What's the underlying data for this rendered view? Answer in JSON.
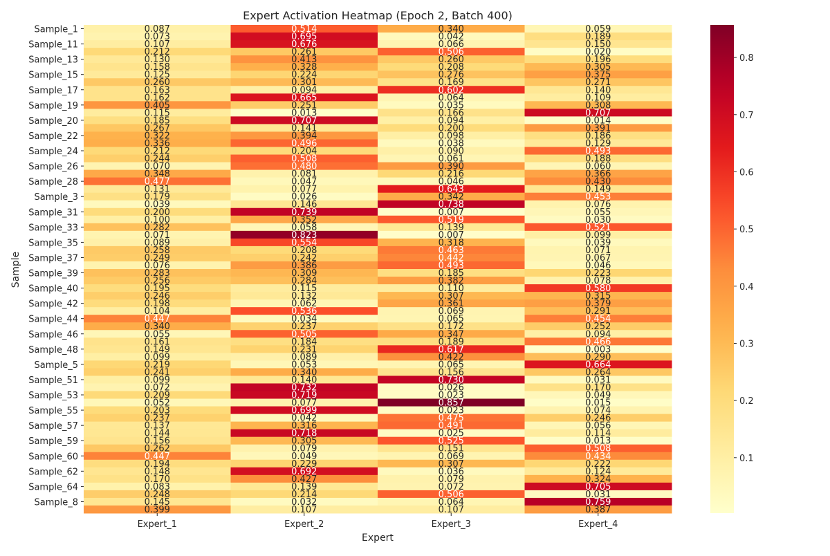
{
  "chart_data": {
    "type": "heatmap",
    "title": "Expert Activation Heatmap (Epoch 2, Batch 400)",
    "xlabel": "Expert",
    "ylabel": "Sample",
    "columns": [
      "Expert_1",
      "Expert_2",
      "Expert_3",
      "Expert_4"
    ],
    "row_tick_labels": [
      "Sample_1",
      "Sample_11",
      "Sample_13",
      "Sample_15",
      "Sample_17",
      "Sample_19",
      "Sample_20",
      "Sample_22",
      "Sample_24",
      "Sample_26",
      "Sample_28",
      "Sample_3",
      "Sample_31",
      "Sample_33",
      "Sample_35",
      "Sample_37",
      "Sample_39",
      "Sample_40",
      "Sample_42",
      "Sample_44",
      "Sample_46",
      "Sample_48",
      "Sample_5",
      "Sample_51",
      "Sample_53",
      "Sample_55",
      "Sample_57",
      "Sample_59",
      "Sample_60",
      "Sample_62",
      "Sample_64",
      "Sample_8"
    ],
    "values": [
      [
        0.087,
        0.514,
        0.34,
        0.059
      ],
      [
        0.073,
        0.695,
        0.042,
        0.189
      ],
      [
        0.107,
        0.676,
        0.066,
        0.15
      ],
      [
        0.212,
        0.261,
        0.506,
        0.02
      ],
      [
        0.13,
        0.413,
        0.26,
        0.196
      ],
      [
        0.158,
        0.328,
        0.208,
        0.305
      ],
      [
        0.125,
        0.224,
        0.276,
        0.375
      ],
      [
        0.26,
        0.301,
        0.169,
        0.271
      ],
      [
        0.163,
        0.094,
        0.602,
        0.14
      ],
      [
        0.162,
        0.665,
        0.064,
        0.109
      ],
      [
        0.405,
        0.251,
        0.035,
        0.308
      ],
      [
        0.115,
        0.013,
        0.166,
        0.707
      ],
      [
        0.185,
        0.707,
        0.094,
        0.014
      ],
      [
        0.267,
        0.141,
        0.2,
        0.391
      ],
      [
        0.322,
        0.394,
        0.098,
        0.186
      ],
      [
        0.336,
        0.496,
        0.038,
        0.129
      ],
      [
        0.212,
        0.204,
        0.09,
        0.493
      ],
      [
        0.244,
        0.508,
        0.061,
        0.188
      ],
      [
        0.07,
        0.48,
        0.39,
        0.06
      ],
      [
        0.348,
        0.081,
        0.216,
        0.366
      ],
      [
        0.477,
        0.047,
        0.046,
        0.43
      ],
      [
        0.131,
        0.077,
        0.643,
        0.149
      ],
      [
        0.179,
        0.026,
        0.342,
        0.453
      ],
      [
        0.039,
        0.146,
        0.738,
        0.076
      ],
      [
        0.2,
        0.739,
        0.007,
        0.055
      ],
      [
        0.1,
        0.352,
        0.519,
        0.03
      ],
      [
        0.282,
        0.058,
        0.139,
        0.521
      ],
      [
        0.071,
        0.823,
        0.007,
        0.099
      ],
      [
        0.089,
        0.554,
        0.318,
        0.039
      ],
      [
        0.258,
        0.208,
        0.463,
        0.071
      ],
      [
        0.249,
        0.242,
        0.442,
        0.067
      ],
      [
        0.076,
        0.386,
        0.493,
        0.046
      ],
      [
        0.283,
        0.309,
        0.185,
        0.223
      ],
      [
        0.256,
        0.284,
        0.382,
        0.078
      ],
      [
        0.195,
        0.115,
        0.11,
        0.58
      ],
      [
        0.246,
        0.132,
        0.307,
        0.315
      ],
      [
        0.198,
        0.062,
        0.361,
        0.379
      ],
      [
        0.104,
        0.536,
        0.069,
        0.291
      ],
      [
        0.447,
        0.034,
        0.065,
        0.454
      ],
      [
        0.34,
        0.237,
        0.172,
        0.252
      ],
      [
        0.055,
        0.505,
        0.347,
        0.094
      ],
      [
        0.161,
        0.184,
        0.189,
        0.466
      ],
      [
        0.149,
        0.231,
        0.617,
        0.003
      ],
      [
        0.099,
        0.089,
        0.422,
        0.29
      ],
      [
        0.219,
        0.053,
        0.065,
        0.664
      ],
      [
        0.241,
        0.34,
        0.156,
        0.264
      ],
      [
        0.099,
        0.14,
        0.73,
        0.031
      ],
      [
        0.072,
        0.732,
        0.026,
        0.17
      ],
      [
        0.209,
        0.719,
        0.023,
        0.049
      ],
      [
        0.052,
        0.077,
        0.857,
        0.015
      ],
      [
        0.203,
        0.699,
        0.023,
        0.074
      ],
      [
        0.237,
        0.042,
        0.475,
        0.246
      ],
      [
        0.137,
        0.316,
        0.491,
        0.056
      ],
      [
        0.144,
        0.718,
        0.025,
        0.114
      ],
      [
        0.156,
        0.305,
        0.525,
        0.013
      ],
      [
        0.262,
        0.079,
        0.151,
        0.508
      ],
      [
        0.447,
        0.049,
        0.069,
        0.434
      ],
      [
        0.194,
        0.229,
        0.307,
        0.222
      ],
      [
        0.148,
        0.692,
        0.036,
        0.124
      ],
      [
        0.17,
        0.427,
        0.079,
        0.324
      ],
      [
        0.083,
        0.139,
        0.072,
        0.705
      ],
      [
        0.248,
        0.214,
        0.506,
        0.031
      ],
      [
        0.145,
        0.032,
        0.064,
        0.759
      ],
      [
        0.399,
        0.107,
        0.107,
        0.387
      ]
    ],
    "value_format": "3 decimals",
    "colormap": "YlOrRd",
    "colorbar": {
      "range": [
        0.003,
        0.857
      ],
      "ticks": [
        0.1,
        0.2,
        0.3,
        0.4,
        0.5,
        0.6,
        0.7,
        0.8
      ],
      "placement": "right"
    },
    "legend": "colorbar",
    "grid": false
  }
}
